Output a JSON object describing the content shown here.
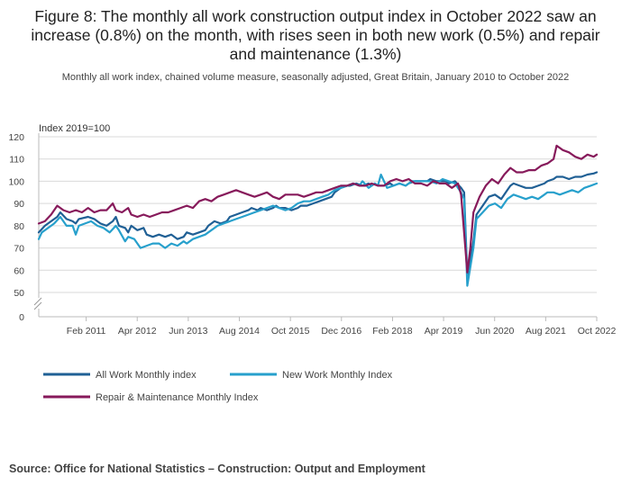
{
  "title": "Figure 8: The monthly all work construction output index in October 2022 saw an increase (0.8%) on the month, with rises seen in both new work (0.5%) and repair and maintenance (1.3%)",
  "subtitle": "Monthly all work index, chained volume measure, seasonally adjusted, Great Britain, January 2010 to October 2022",
  "source": "Source: Office for National Statistics – Construction: Output and Employment",
  "colors": {
    "all_work": "#206095",
    "new_work": "#27a0cc",
    "repair": "#871a5b"
  },
  "chart_data": {
    "type": "line",
    "ylabel": "Index 2019=100",
    "y_ticks": [
      0,
      50,
      60,
      70,
      80,
      90,
      100,
      110,
      120
    ],
    "ylim": [
      40,
      120
    ],
    "axis_break": true,
    "x_ticks": [
      "Feb 2011",
      "Apr 2012",
      "Jun 2013",
      "Aug 2014",
      "Oct 2015",
      "Dec 2016",
      "Feb 2018",
      "Apr 2019",
      "Jun 2020",
      "Aug 2021",
      "Oct 2022"
    ],
    "x_start": "Jan 2010",
    "x_end": "Oct 2022",
    "legend": "bottom",
    "series": [
      {
        "name": "All Work Monthly index",
        "key": "all_work",
        "points": [
          [
            0,
            77
          ],
          [
            2,
            80
          ],
          [
            4,
            82
          ],
          [
            6,
            84
          ],
          [
            7,
            86
          ],
          [
            9,
            83
          ],
          [
            11,
            82
          ],
          [
            12,
            81
          ],
          [
            13,
            83
          ],
          [
            16,
            84
          ],
          [
            18,
            83
          ],
          [
            20,
            81
          ],
          [
            22,
            80
          ],
          [
            24,
            82
          ],
          [
            25,
            84
          ],
          [
            26,
            80
          ],
          [
            28,
            79
          ],
          [
            29,
            77
          ],
          [
            30,
            80
          ],
          [
            32,
            78
          ],
          [
            34,
            79
          ],
          [
            35,
            76
          ],
          [
            37,
            75
          ],
          [
            39,
            76
          ],
          [
            41,
            75
          ],
          [
            43,
            76
          ],
          [
            45,
            74
          ],
          [
            47,
            75
          ],
          [
            48,
            77
          ],
          [
            50,
            76
          ],
          [
            52,
            77
          ],
          [
            54,
            78
          ],
          [
            55,
            80
          ],
          [
            57,
            82
          ],
          [
            59,
            81
          ],
          [
            61,
            82
          ],
          [
            62,
            84
          ],
          [
            64,
            85
          ],
          [
            66,
            86
          ],
          [
            68,
            87
          ],
          [
            69,
            88
          ],
          [
            71,
            87
          ],
          [
            72,
            88
          ],
          [
            74,
            87
          ],
          [
            76,
            88
          ],
          [
            77,
            89
          ],
          [
            78,
            88
          ],
          [
            80,
            88
          ],
          [
            82,
            87
          ],
          [
            84,
            88
          ],
          [
            85,
            89
          ],
          [
            87,
            89
          ],
          [
            89,
            90
          ],
          [
            91,
            91
          ],
          [
            93,
            92
          ],
          [
            95,
            93
          ],
          [
            96,
            95
          ],
          [
            98,
            97
          ],
          [
            100,
            98
          ],
          [
            101,
            98
          ],
          [
            103,
            99
          ],
          [
            105,
            98
          ],
          [
            107,
            99
          ],
          [
            108,
            98
          ],
          [
            109,
            99
          ],
          [
            110,
            98
          ],
          [
            112,
            98
          ],
          [
            114,
            99
          ],
          [
            115,
            98
          ],
          [
            117,
            99
          ],
          [
            119,
            98
          ],
          [
            120,
            99
          ],
          [
            122,
            100
          ],
          [
            124,
            100
          ],
          [
            126,
            100
          ],
          [
            127,
            101
          ],
          [
            129,
            100
          ],
          [
            131,
            100
          ],
          [
            132,
            100
          ],
          [
            133,
            99
          ],
          [
            135,
            100
          ],
          [
            137,
            97
          ],
          [
            138,
            95
          ],
          [
            139,
            57
          ],
          [
            141,
            73
          ],
          [
            142,
            85
          ],
          [
            144,
            89
          ],
          [
            146,
            93
          ],
          [
            148,
            94
          ],
          [
            150,
            92
          ],
          [
            152,
            96
          ],
          [
            154,
            99
          ],
          [
            156,
            98
          ],
          [
            158,
            97
          ],
          [
            160,
            97
          ],
          [
            162,
            98
          ],
          [
            164,
            99
          ],
          [
            165,
            100
          ],
          [
            167,
            101
          ],
          [
            168,
            102
          ],
          [
            170,
            102
          ],
          [
            172,
            101
          ],
          [
            174,
            102
          ],
          [
            176,
            102
          ],
          [
            178,
            103
          ],
          [
            180,
            103.5
          ],
          [
            181,
            104
          ],
          [
            153,
            98
          ]
        ]
      },
      {
        "name": "New Work Monthly Index",
        "key": "new_work",
        "points": [
          [
            0,
            74
          ],
          [
            1,
            77
          ],
          [
            3,
            79
          ],
          [
            5,
            81
          ],
          [
            7,
            84
          ],
          [
            9,
            80
          ],
          [
            11,
            80
          ],
          [
            12,
            76
          ],
          [
            13,
            80
          ],
          [
            15,
            81
          ],
          [
            17,
            82
          ],
          [
            19,
            80
          ],
          [
            21,
            79
          ],
          [
            23,
            77
          ],
          [
            25,
            80
          ],
          [
            26,
            78
          ],
          [
            28,
            73
          ],
          [
            29,
            75
          ],
          [
            31,
            74
          ],
          [
            33,
            70
          ],
          [
            35,
            71
          ],
          [
            37,
            72
          ],
          [
            39,
            72
          ],
          [
            41,
            70
          ],
          [
            43,
            72
          ],
          [
            45,
            71
          ],
          [
            47,
            73
          ],
          [
            48,
            72
          ],
          [
            50,
            74
          ],
          [
            52,
            75
          ],
          [
            54,
            76
          ],
          [
            56,
            78
          ],
          [
            58,
            80
          ],
          [
            60,
            81
          ],
          [
            62,
            82
          ],
          [
            64,
            83
          ],
          [
            66,
            84
          ],
          [
            68,
            85
          ],
          [
            70,
            86
          ],
          [
            72,
            87
          ],
          [
            74,
            88
          ],
          [
            76,
            89
          ],
          [
            78,
            88
          ],
          [
            80,
            87
          ],
          [
            82,
            88
          ],
          [
            84,
            90
          ],
          [
            86,
            91
          ],
          [
            88,
            91
          ],
          [
            90,
            92
          ],
          [
            92,
            93
          ],
          [
            94,
            94
          ],
          [
            96,
            96
          ],
          [
            98,
            97
          ],
          [
            100,
            98
          ],
          [
            102,
            99
          ],
          [
            104,
            98
          ],
          [
            105,
            100
          ],
          [
            107,
            97
          ],
          [
            109,
            99
          ],
          [
            110,
            98
          ],
          [
            111,
            103
          ],
          [
            113,
            97
          ],
          [
            115,
            98
          ],
          [
            117,
            99
          ],
          [
            119,
            98
          ],
          [
            121,
            100
          ],
          [
            123,
            100
          ],
          [
            125,
            100
          ],
          [
            127,
            100
          ],
          [
            129,
            99
          ],
          [
            131,
            101
          ],
          [
            133,
            100
          ],
          [
            135,
            99
          ],
          [
            137,
            95
          ],
          [
            138,
            92
          ],
          [
            139,
            53
          ],
          [
            141,
            70
          ],
          [
            142,
            83
          ],
          [
            144,
            86
          ],
          [
            146,
            89
          ],
          [
            148,
            90
          ],
          [
            150,
            88
          ],
          [
            152,
            92
          ],
          [
            154,
            94
          ],
          [
            156,
            93
          ],
          [
            158,
            92
          ],
          [
            160,
            93
          ],
          [
            162,
            92
          ],
          [
            164,
            94
          ],
          [
            165,
            95
          ],
          [
            167,
            95
          ],
          [
            169,
            94
          ],
          [
            171,
            95
          ],
          [
            173,
            96
          ],
          [
            175,
            95
          ],
          [
            177,
            97
          ],
          [
            179,
            98
          ],
          [
            181,
            99
          ]
        ]
      },
      {
        "name": "Repair & Maintenance Monthly Index",
        "key": "repair",
        "points": [
          [
            0,
            81
          ],
          [
            2,
            82
          ],
          [
            4,
            85
          ],
          [
            6,
            89
          ],
          [
            8,
            87
          ],
          [
            10,
            86
          ],
          [
            12,
            87
          ],
          [
            14,
            86
          ],
          [
            16,
            88
          ],
          [
            18,
            86
          ],
          [
            20,
            87
          ],
          [
            22,
            87
          ],
          [
            24,
            90
          ],
          [
            25,
            87
          ],
          [
            27,
            86
          ],
          [
            29,
            88
          ],
          [
            30,
            85
          ],
          [
            32,
            84
          ],
          [
            34,
            85
          ],
          [
            36,
            84
          ],
          [
            38,
            85
          ],
          [
            40,
            86
          ],
          [
            42,
            86
          ],
          [
            44,
            87
          ],
          [
            46,
            88
          ],
          [
            48,
            89
          ],
          [
            50,
            88
          ],
          [
            52,
            91
          ],
          [
            54,
            92
          ],
          [
            56,
            91
          ],
          [
            58,
            93
          ],
          [
            60,
            94
          ],
          [
            62,
            95
          ],
          [
            64,
            96
          ],
          [
            66,
            95
          ],
          [
            68,
            94
          ],
          [
            70,
            93
          ],
          [
            72,
            94
          ],
          [
            74,
            95
          ],
          [
            76,
            93
          ],
          [
            78,
            92
          ],
          [
            80,
            94
          ],
          [
            82,
            94
          ],
          [
            84,
            94
          ],
          [
            86,
            93
          ],
          [
            88,
            94
          ],
          [
            90,
            95
          ],
          [
            92,
            95
          ],
          [
            94,
            96
          ],
          [
            96,
            97
          ],
          [
            98,
            98
          ],
          [
            100,
            98
          ],
          [
            102,
            99
          ],
          [
            104,
            98
          ],
          [
            106,
            98
          ],
          [
            108,
            99
          ],
          [
            110,
            98
          ],
          [
            112,
            98
          ],
          [
            114,
            100
          ],
          [
            116,
            101
          ],
          [
            118,
            100
          ],
          [
            120,
            101
          ],
          [
            122,
            99
          ],
          [
            124,
            99
          ],
          [
            126,
            98
          ],
          [
            128,
            100
          ],
          [
            130,
            99
          ],
          [
            132,
            99
          ],
          [
            134,
            97
          ],
          [
            136,
            99
          ],
          [
            137,
            94
          ],
          [
            139,
            59
          ],
          [
            140,
            70
          ],
          [
            141,
            86
          ],
          [
            143,
            93
          ],
          [
            145,
            98
          ],
          [
            147,
            101
          ],
          [
            149,
            99
          ],
          [
            151,
            103
          ],
          [
            153,
            106
          ],
          [
            155,
            104
          ],
          [
            157,
            104
          ],
          [
            159,
            105
          ],
          [
            161,
            105
          ],
          [
            163,
            107
          ],
          [
            165,
            108
          ],
          [
            167,
            110
          ],
          [
            168,
            116
          ],
          [
            170,
            114
          ],
          [
            172,
            113
          ],
          [
            174,
            111
          ],
          [
            176,
            110
          ],
          [
            178,
            112
          ],
          [
            180,
            111
          ],
          [
            181,
            112
          ]
        ]
      }
    ]
  }
}
